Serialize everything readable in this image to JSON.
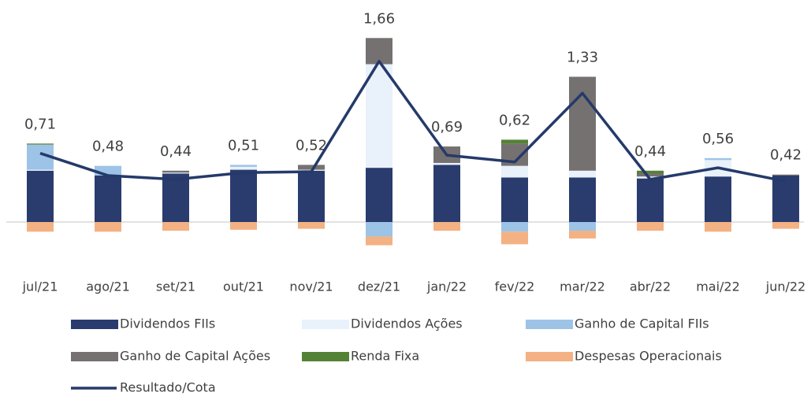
{
  "chart_data": {
    "type": "bar",
    "stacked": true,
    "categories": [
      "jul/21",
      "ago/21",
      "set/21",
      "out/21",
      "nov/21",
      "dez/21",
      "jan/22",
      "fev/22",
      "mar/22",
      "abr/22",
      "mai/22",
      "jun/22"
    ],
    "series": [
      {
        "name": "Dividendos FIIs",
        "color": "#2a3c6e",
        "values": [
          0.53,
          0.48,
          0.5,
          0.54,
          0.53,
          0.56,
          0.59,
          0.46,
          0.46,
          0.45,
          0.47,
          0.48
        ]
      },
      {
        "name": "Dividendos Ações",
        "color": "#e9f1fb",
        "values": [
          0.01,
          0,
          0.01,
          0.03,
          0.01,
          1.07,
          0.02,
          0.12,
          0.07,
          0.02,
          0.17,
          0
        ]
      },
      {
        "name": "Ganho de Capital FIIs",
        "color": "#9dc3e6",
        "values": [
          0.26,
          0.1,
          0,
          0.02,
          0,
          -0.15,
          0,
          -0.1,
          -0.09,
          0,
          0.02,
          0
        ]
      },
      {
        "name": "Ganho de Capital Ações",
        "color": "#767171",
        "values": [
          0,
          0,
          0.02,
          0,
          0.05,
          0.27,
          0.17,
          0.23,
          0.97,
          0.03,
          0,
          0.01
        ]
      },
      {
        "name": "Renda Fixa",
        "color": "#548235",
        "values": [
          0.01,
          0,
          0,
          0,
          0,
          0,
          0,
          0.04,
          0,
          0.03,
          0,
          0
        ]
      },
      {
        "name": "Despesas Operacionais",
        "color": "#f4b183",
        "values": [
          -0.1,
          -0.1,
          -0.09,
          -0.08,
          -0.07,
          -0.09,
          -0.09,
          -0.13,
          -0.08,
          -0.09,
          -0.1,
          -0.07
        ]
      },
      {
        "name": "Resultado/Cota",
        "type": "line",
        "color": "#253a6a",
        "values": [
          0.71,
          0.48,
          0.44,
          0.51,
          0.52,
          1.66,
          0.69,
          0.62,
          1.33,
          0.44,
          0.56,
          0.42
        ],
        "value_labels": [
          "0,71",
          "0,48",
          "0,44",
          "0,51",
          "0,52",
          "1,66",
          "0,69",
          "0,62",
          "1,33",
          "0,44",
          "0,56",
          "0,42"
        ]
      }
    ]
  }
}
